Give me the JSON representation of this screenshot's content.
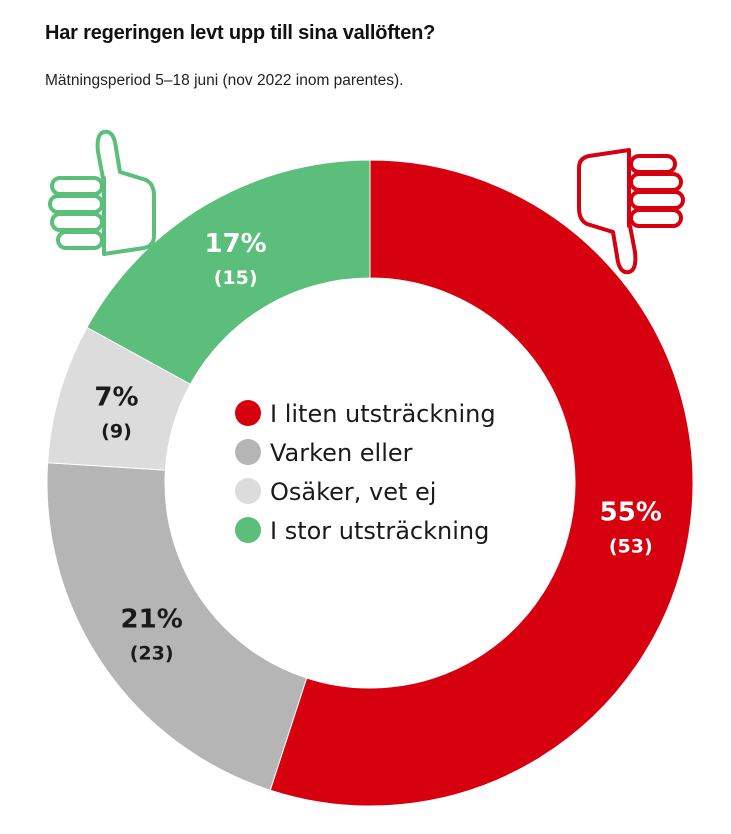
{
  "title": "Har regeringen levt upp till sina vallöften?",
  "subtitle": "Mätningsperiod 5–18 juni (nov 2022 inom parentes).",
  "chart_data": {
    "type": "pie",
    "style": "donut",
    "slices": [
      {
        "label": "I liten utsträckning",
        "value": 55,
        "value_label": "55%",
        "previous": 53,
        "previous_label": "(53)",
        "color": "#D6000F",
        "label_color": "#ffffff"
      },
      {
        "label": "Varken eller",
        "value": 21,
        "value_label": "21%",
        "previous": 23,
        "previous_label": "(23)",
        "color": "#B5B5B5",
        "label_color": "#1a1a1a"
      },
      {
        "label": "Osäker, vet ej",
        "value": 7,
        "value_label": "7%",
        "previous": 9,
        "previous_label": "(9)",
        "color": "#DCDCDC",
        "label_color": "#1a1a1a"
      },
      {
        "label": "I stor utsträckning",
        "value": 17,
        "value_label": "17%",
        "previous": 15,
        "previous_label": "(15)",
        "color": "#5BBE7A",
        "label_color": "#ffffff"
      }
    ],
    "legend": {
      "placement": "center"
    }
  },
  "icons": [
    {
      "name": "thumbs-up-icon",
      "color": "#5BBE7A"
    },
    {
      "name": "thumbs-down-icon",
      "color": "#D6000F"
    }
  ]
}
